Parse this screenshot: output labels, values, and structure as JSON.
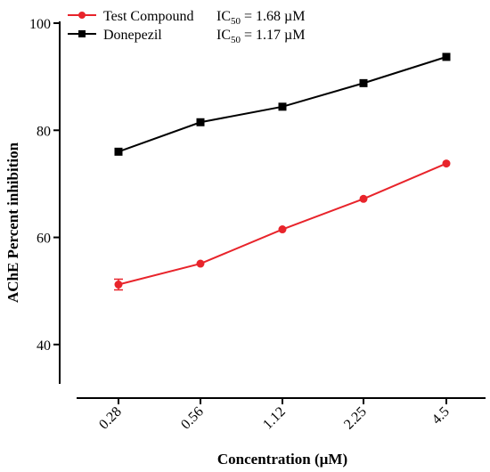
{
  "chart_data": {
    "type": "line",
    "xlabel": "Concentration (µM)",
    "ylabel": "AChE Percent inhibition",
    "categories": [
      "0.28",
      "0.56",
      "1.12",
      "2.25",
      "4.5"
    ],
    "ylim": [
      30,
      100
    ],
    "yticks": [
      40,
      60,
      80,
      100
    ],
    "grid": false,
    "legend_position": "top-left",
    "series": [
      {
        "name": "Test Compound",
        "annotation": "IC50 = 1.68 µM",
        "color": "#e8242b",
        "marker": "circle",
        "values": [
          51.2,
          55.1,
          61.5,
          67.2,
          73.8
        ],
        "errors": [
          1.0,
          0,
          0,
          0,
          0
        ]
      },
      {
        "name": "Donepezil",
        "annotation": "IC50 = 1.17 µM",
        "color": "#000000",
        "marker": "square",
        "values": [
          76.0,
          81.5,
          84.4,
          88.8,
          93.7
        ],
        "errors": [
          0,
          0,
          0,
          0,
          0
        ]
      }
    ]
  }
}
